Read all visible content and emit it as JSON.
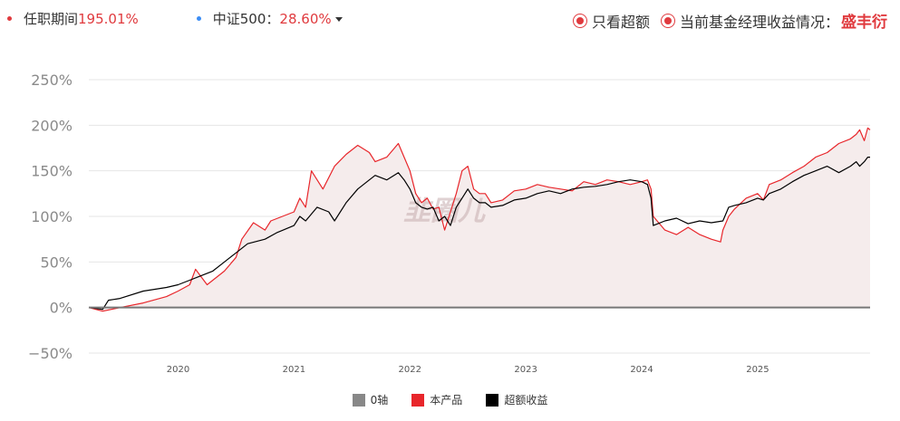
{
  "header": {
    "tenure_label": "任职期间",
    "tenure_value": "195.01%",
    "tenure_color": "#e03a3e",
    "benchmark_label": "中证500",
    "benchmark_sep": "：",
    "benchmark_value": "28.60%",
    "benchmark_color": "#3b8df5",
    "opt_excess_label": "只看超额",
    "opt_manager_label": "当前基金经理收益情况：",
    "manager_name": "盛丰衍"
  },
  "legend": [
    {
      "label": "0轴",
      "color": "#888888"
    },
    {
      "label": "本产品",
      "color": "#e8262b"
    },
    {
      "label": "超额收益",
      "color": "#000000"
    }
  ],
  "chart_data": {
    "type": "line",
    "y_ticks": [
      "250%",
      "200%",
      "150%",
      "100%",
      "50%",
      "0%",
      "−50%"
    ],
    "x_ticks": [
      "2020",
      "2021",
      "2022",
      "2023",
      "2024",
      "2025"
    ],
    "ylim": [
      -50,
      250
    ],
    "xlim": [
      2019.23,
      2025.97
    ],
    "watermark": "韭圈儿",
    "legend_position": "bottom",
    "grid": true,
    "series": [
      {
        "name": "本产品",
        "color": "#e8262b",
        "x": [
          2019.23,
          2019.35,
          2019.5,
          2019.7,
          2019.9,
          2020.0,
          2020.1,
          2020.15,
          2020.25,
          2020.4,
          2020.5,
          2020.55,
          2020.65,
          2020.75,
          2020.8,
          2020.9,
          2021.0,
          2021.05,
          2021.1,
          2021.15,
          2021.25,
          2021.35,
          2021.45,
          2021.55,
          2021.65,
          2021.7,
          2021.8,
          2021.9,
          2021.95,
          2022.0,
          2022.05,
          2022.1,
          2022.15,
          2022.2,
          2022.25,
          2022.3,
          2022.35,
          2022.4,
          2022.45,
          2022.5,
          2022.55,
          2022.6,
          2022.65,
          2022.7,
          2022.8,
          2022.9,
          2023.0,
          2023.1,
          2023.2,
          2023.3,
          2023.4,
          2023.5,
          2023.6,
          2023.7,
          2023.8,
          2023.9,
          2024.0,
          2024.05,
          2024.08,
          2024.1,
          2024.2,
          2024.3,
          2024.4,
          2024.5,
          2024.6,
          2024.68,
          2024.7,
          2024.75,
          2024.8,
          2024.9,
          2025.0,
          2025.05,
          2025.1,
          2025.2,
          2025.3,
          2025.4,
          2025.5,
          2025.6,
          2025.7,
          2025.8,
          2025.85,
          2025.88,
          2025.92,
          2025.95,
          2025.97
        ],
        "y": [
          0,
          -4,
          0,
          5,
          12,
          18,
          25,
          42,
          25,
          40,
          55,
          75,
          93,
          85,
          95,
          100,
          105,
          120,
          110,
          150,
          130,
          155,
          168,
          178,
          170,
          160,
          165,
          180,
          165,
          150,
          125,
          115,
          120,
          108,
          110,
          85,
          105,
          125,
          150,
          155,
          130,
          125,
          125,
          115,
          118,
          128,
          130,
          135,
          132,
          130,
          128,
          138,
          135,
          140,
          138,
          135,
          138,
          140,
          130,
          100,
          85,
          80,
          88,
          80,
          75,
          72,
          85,
          100,
          108,
          120,
          125,
          118,
          135,
          140,
          148,
          155,
          165,
          170,
          180,
          185,
          190,
          195,
          183,
          197,
          195
        ]
      },
      {
        "name": "超额收益",
        "color": "#000000",
        "x": [
          2019.23,
          2019.35,
          2019.4,
          2019.5,
          2019.7,
          2019.9,
          2020.0,
          2020.1,
          2020.2,
          2020.3,
          2020.4,
          2020.5,
          2020.6,
          2020.75,
          2020.85,
          2021.0,
          2021.05,
          2021.1,
          2021.2,
          2021.3,
          2021.35,
          2021.45,
          2021.55,
          2021.65,
          2021.7,
          2021.8,
          2021.9,
          2021.95,
          2022.0,
          2022.05,
          2022.1,
          2022.15,
          2022.2,
          2022.25,
          2022.3,
          2022.35,
          2022.4,
          2022.45,
          2022.5,
          2022.55,
          2022.6,
          2022.65,
          2022.7,
          2022.8,
          2022.9,
          2023.0,
          2023.1,
          2023.2,
          2023.3,
          2023.4,
          2023.5,
          2023.6,
          2023.7,
          2023.8,
          2023.9,
          2024.0,
          2024.05,
          2024.08,
          2024.1,
          2024.2,
          2024.3,
          2024.4,
          2024.5,
          2024.6,
          2024.7,
          2024.75,
          2024.8,
          2024.9,
          2025.0,
          2025.05,
          2025.1,
          2025.2,
          2025.3,
          2025.4,
          2025.5,
          2025.6,
          2025.7,
          2025.8,
          2025.85,
          2025.88,
          2025.92,
          2025.95,
          2025.97
        ],
        "y": [
          0,
          -2,
          8,
          10,
          18,
          22,
          25,
          30,
          35,
          40,
          50,
          60,
          70,
          75,
          82,
          90,
          100,
          95,
          110,
          105,
          95,
          115,
          130,
          140,
          145,
          140,
          148,
          140,
          130,
          115,
          110,
          108,
          110,
          95,
          100,
          90,
          110,
          120,
          130,
          120,
          115,
          115,
          110,
          112,
          118,
          120,
          125,
          128,
          125,
          130,
          132,
          133,
          135,
          138,
          140,
          138,
          135,
          120,
          90,
          95,
          98,
          92,
          95,
          93,
          95,
          110,
          112,
          115,
          120,
          118,
          125,
          130,
          138,
          145,
          150,
          155,
          148,
          155,
          160,
          155,
          160,
          165,
          165
        ]
      }
    ]
  }
}
